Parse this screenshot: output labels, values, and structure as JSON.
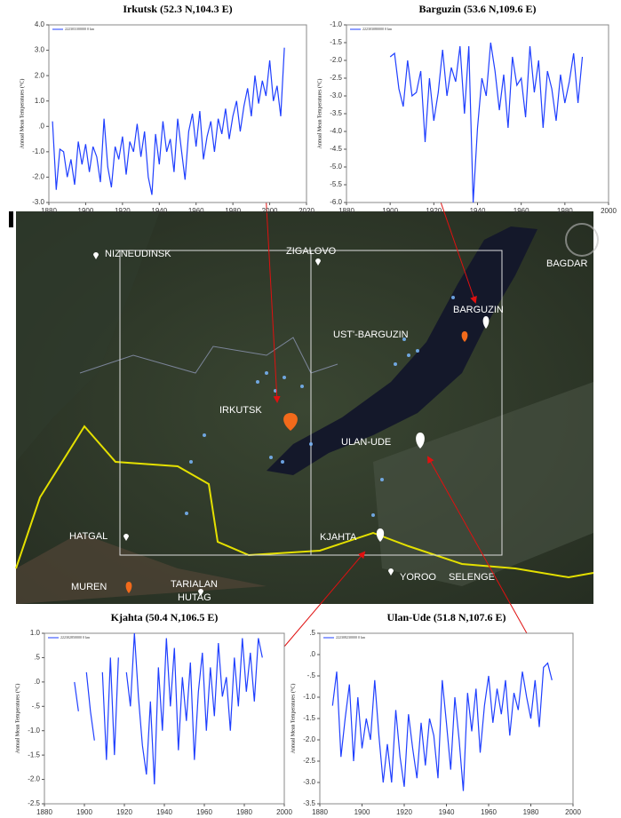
{
  "chart_data": [
    {
      "type": "line",
      "title": "Irkutsk (52.3 N,104.3 E)",
      "ylabel": "Annual Mean Temperatures (°C)",
      "x": [
        1882,
        1884,
        1886,
        1888,
        1890,
        1892,
        1894,
        1896,
        1898,
        1900,
        1902,
        1904,
        1906,
        1908,
        1910,
        1912,
        1914,
        1916,
        1918,
        1920,
        1922,
        1924,
        1926,
        1928,
        1930,
        1932,
        1934,
        1936,
        1938,
        1940,
        1942,
        1944,
        1946,
        1948,
        1950,
        1952,
        1954,
        1956,
        1958,
        1960,
        1962,
        1964,
        1966,
        1968,
        1970,
        1972,
        1974,
        1976,
        1978,
        1980,
        1982,
        1984,
        1986,
        1988,
        1990,
        1992,
        1994,
        1996,
        1998,
        2000,
        2002,
        2004,
        2006,
        2008
      ],
      "series": [
        {
          "name": "222303100000 0 km",
          "color": "#1f3fff",
          "values": [
            0.2,
            -2.5,
            -0.9,
            -1.0,
            -2.0,
            -1.3,
            -2.3,
            -0.6,
            -1.5,
            -0.7,
            -1.8,
            -0.8,
            -1.2,
            -2.2,
            0.3,
            -1.6,
            -2.4,
            -0.8,
            -1.3,
            -0.4,
            -1.9,
            -0.6,
            -1.0,
            0.1,
            -1.2,
            -0.2,
            -2.0,
            -2.7,
            -0.3,
            -1.5,
            0.2,
            -1.0,
            -0.5,
            -1.8,
            0.3,
            -0.9,
            -2.1,
            -0.2,
            0.5,
            -0.8,
            0.6,
            -1.3,
            -0.4,
            0.2,
            -1.0,
            0.3,
            -0.3,
            0.7,
            -0.5,
            0.4,
            1.0,
            -0.2,
            0.8,
            1.5,
            0.4,
            2.0,
            0.9,
            1.8,
            1.2,
            2.6,
            1.0,
            1.6,
            0.4,
            3.1
          ]
        }
      ],
      "xlim": [
        1880,
        2020
      ],
      "xticks": [
        1880,
        1900,
        1920,
        1940,
        1960,
        1980,
        2000,
        2020
      ],
      "ylim": [
        -3,
        4
      ],
      "yticks": [
        {
          "value": -3,
          "label": "-3.0"
        },
        {
          "value": -2,
          "label": "-2.0"
        },
        {
          "value": -1,
          "label": "-1.0"
        },
        {
          "value": 0,
          "label": ".0"
        },
        {
          "value": 1,
          "label": "1.0"
        },
        {
          "value": 2,
          "label": "2.0"
        },
        {
          "value": 3,
          "label": "3.0"
        },
        {
          "value": 4,
          "label": "4.0"
        }
      ]
    },
    {
      "type": "line",
      "title": "Barguzin (53.6 N,109.6 E)",
      "ylabel": "Annual Mean Temperatures (°C)",
      "x": [
        1900,
        1902,
        1904,
        1906,
        1908,
        1910,
        1912,
        1914,
        1916,
        1918,
        1920,
        1922,
        1924,
        1926,
        1928,
        1930,
        1932,
        1934,
        1936,
        1938,
        1940,
        1942,
        1944,
        1946,
        1948,
        1950,
        1952,
        1954,
        1956,
        1958,
        1960,
        1962,
        1964,
        1966,
        1968,
        1970,
        1972,
        1974,
        1976,
        1978,
        1980,
        1982,
        1984,
        1986,
        1988
      ],
      "series": [
        {
          "name": "222303080000 0 km",
          "color": "#1f3fff",
          "values": [
            -1.9,
            -1.8,
            -2.8,
            -3.3,
            -2.0,
            -3.0,
            -2.9,
            -2.3,
            -4.3,
            -2.5,
            -3.7,
            -2.9,
            -1.7,
            -3.0,
            -2.2,
            -2.6,
            -1.6,
            -3.5,
            -1.6,
            -6.0,
            -3.9,
            -2.5,
            -3.0,
            -1.5,
            -2.3,
            -3.4,
            -2.4,
            -3.9,
            -1.9,
            -2.7,
            -2.5,
            -3.6,
            -1.6,
            -2.9,
            -2.0,
            -3.9,
            -2.3,
            -2.8,
            -3.7,
            -2.4,
            -3.2,
            -2.6,
            -1.8,
            -3.2,
            -1.9
          ]
        }
      ],
      "xlim": [
        1880,
        2000
      ],
      "xticks": [
        1880,
        1900,
        1920,
        1940,
        1960,
        1980,
        2000
      ],
      "ylim": [
        -6,
        -1
      ],
      "yticks": [
        {
          "value": -6,
          "label": "-6.0"
        },
        {
          "value": -5.5,
          "label": "-5.5"
        },
        {
          "value": -5,
          "label": "-5.0"
        },
        {
          "value": -4.5,
          "label": "-4.5"
        },
        {
          "value": -4,
          "label": "-4.0"
        },
        {
          "value": -3.5,
          "label": "-3.5"
        },
        {
          "value": -3,
          "label": "-3.0"
        },
        {
          "value": -2.5,
          "label": "-2.5"
        },
        {
          "value": -2,
          "label": "-2.0"
        },
        {
          "value": -1.5,
          "label": "-1.5"
        },
        {
          "value": -1,
          "label": "-1.0"
        }
      ]
    },
    {
      "type": "line",
      "title": "Kjahta (50.4 N,106.5 E)",
      "ylabel": "Annual Mean Temperatures (°C)",
      "x": [
        1895,
        1897,
        1899,
        1901,
        1903,
        1905,
        1907,
        1909,
        1911,
        1913,
        1915,
        1917,
        1919,
        1921,
        1923,
        1925,
        1927,
        1929,
        1931,
        1933,
        1935,
        1937,
        1939,
        1941,
        1943,
        1945,
        1947,
        1949,
        1951,
        1953,
        1955,
        1957,
        1959,
        1961,
        1963,
        1965,
        1967,
        1969,
        1971,
        1973,
        1975,
        1977,
        1979,
        1981,
        1983,
        1985,
        1987,
        1989
      ],
      "series": [
        {
          "name": "222302850000 0 km",
          "color": "#1f3fff",
          "values": [
            0.0,
            -0.6,
            null,
            0.2,
            -0.6,
            -1.2,
            null,
            0.2,
            -1.6,
            0.5,
            -1.5,
            0.5,
            null,
            0.2,
            -0.5,
            1.0,
            -0.3,
            -1.3,
            -1.9,
            -0.4,
            -2.1,
            0.3,
            -1.0,
            0.9,
            -0.5,
            0.7,
            -1.4,
            0.1,
            -0.8,
            0.4,
            -1.6,
            -0.2,
            0.6,
            -1.0,
            0.3,
            -0.7,
            0.8,
            -0.3,
            0.1,
            -1.0,
            0.5,
            -0.5,
            0.9,
            -0.2,
            0.6,
            -0.4,
            0.9,
            0.5
          ]
        }
      ],
      "xlim": [
        1880,
        2000
      ],
      "xticks": [
        1880,
        1900,
        1920,
        1940,
        1960,
        1980,
        2000
      ],
      "ylim": [
        -2.5,
        1
      ],
      "yticks": [
        {
          "value": -2.5,
          "label": "-2.5"
        },
        {
          "value": -2,
          "label": "-2.0"
        },
        {
          "value": -1.5,
          "label": "-1.5"
        },
        {
          "value": -1,
          "label": "-1.0"
        },
        {
          "value": -0.5,
          "label": "-.5"
        },
        {
          "value": 0,
          "label": ".0"
        },
        {
          "value": 0.5,
          "label": ".5"
        },
        {
          "value": 1,
          "label": "1.0"
        }
      ]
    },
    {
      "type": "line",
      "title": "Ulan-Ude (51.8 N,107.6 E)",
      "ylabel": "Annual Mean Temperatures (°C)",
      "x": [
        1886,
        1888,
        1890,
        1892,
        1894,
        1896,
        1898,
        1900,
        1902,
        1904,
        1906,
        1908,
        1910,
        1912,
        1914,
        1916,
        1918,
        1920,
        1922,
        1924,
        1926,
        1928,
        1930,
        1932,
        1934,
        1936,
        1938,
        1940,
        1942,
        1944,
        1946,
        1948,
        1950,
        1952,
        1954,
        1956,
        1958,
        1960,
        1962,
        1964,
        1966,
        1968,
        1970,
        1972,
        1974,
        1976,
        1978,
        1980,
        1982,
        1984,
        1986,
        1988,
        1990
      ],
      "series": [
        {
          "name": "222308230000 0 km",
          "color": "#1f3fff",
          "values": [
            -1.2,
            -0.4,
            -2.4,
            -1.5,
            -0.7,
            -2.5,
            -1.0,
            -2.2,
            -1.5,
            -2.0,
            -0.6,
            -1.9,
            -3.0,
            -2.1,
            -3.0,
            -1.3,
            -2.4,
            -3.1,
            -1.4,
            -2.2,
            -2.9,
            -1.6,
            -2.6,
            -1.5,
            -1.9,
            -2.9,
            -0.6,
            -1.6,
            -2.7,
            -1.0,
            -2.0,
            -3.2,
            -0.9,
            -1.8,
            -0.8,
            -2.3,
            -1.2,
            -0.5,
            -1.6,
            -0.8,
            -1.4,
            -0.6,
            -1.9,
            -0.9,
            -1.3,
            -0.4,
            -1.0,
            -1.5,
            -0.6,
            -1.7,
            -0.3,
            -0.2,
            -0.6
          ]
        }
      ],
      "xlim": [
        1880,
        2000
      ],
      "xticks": [
        1880,
        1900,
        1920,
        1940,
        1960,
        1980,
        2000
      ],
      "ylim": [
        -3.5,
        0.5
      ],
      "yticks": [
        {
          "value": -3.5,
          "label": "-3.5"
        },
        {
          "value": -3,
          "label": "-3.0"
        },
        {
          "value": -2.5,
          "label": "-2.5"
        },
        {
          "value": -2,
          "label": "-2.0"
        },
        {
          "value": -1.5,
          "label": "-1.5"
        },
        {
          "value": -1,
          "label": "-1.0"
        },
        {
          "value": -0.5,
          "label": "-.5"
        },
        {
          "value": 0,
          "label": ".0"
        },
        {
          "value": 0.5,
          "label": ".5"
        }
      ]
    }
  ],
  "map": {
    "labels": [
      "NIZNEUDINSK",
      "ZIGALOVO",
      "BAGDAR",
      "BARGUZIN",
      "UST'-BARGUZIN",
      "IRKUTSK",
      "ULAN-UDE",
      "HATGAL",
      "KJAHTA",
      "MUREN",
      "TARIALAN",
      "HUTAG",
      "YOROO",
      "SELENGE"
    ]
  }
}
